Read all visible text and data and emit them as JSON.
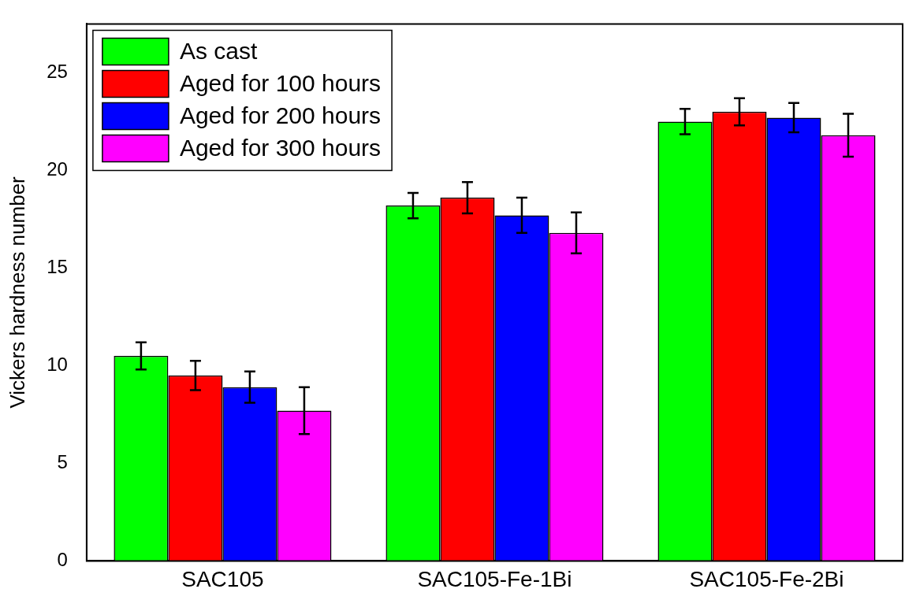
{
  "chart_data": {
    "type": "bar",
    "ylabel": "Vickers hardness number",
    "categories": [
      "SAC105",
      "SAC105-Fe-1Bi",
      "SAC105-Fe-2Bi"
    ],
    "series": [
      {
        "name": "As cast",
        "color": "#00ff00",
        "values": [
          10.5,
          18.2,
          22.5
        ],
        "errors": [
          0.7,
          0.65,
          0.65
        ]
      },
      {
        "name": "Aged for 100 hours",
        "color": "#ff0000",
        "values": [
          9.5,
          18.6,
          23.0
        ],
        "errors": [
          0.75,
          0.8,
          0.7
        ]
      },
      {
        "name": "Aged for 200 hours",
        "color": "#0000ff",
        "values": [
          8.9,
          17.7,
          22.7
        ],
        "errors": [
          0.8,
          0.9,
          0.75
        ]
      },
      {
        "name": "Aged for 300 hours",
        "color": "#ff00ff",
        "values": [
          7.7,
          16.8,
          21.8
        ],
        "errors": [
          1.2,
          1.05,
          1.1
        ]
      }
    ],
    "ylim": [
      0,
      27.5
    ],
    "yticks": [
      0,
      5,
      10,
      15,
      20,
      25
    ],
    "grid": false,
    "legend": "top left"
  }
}
